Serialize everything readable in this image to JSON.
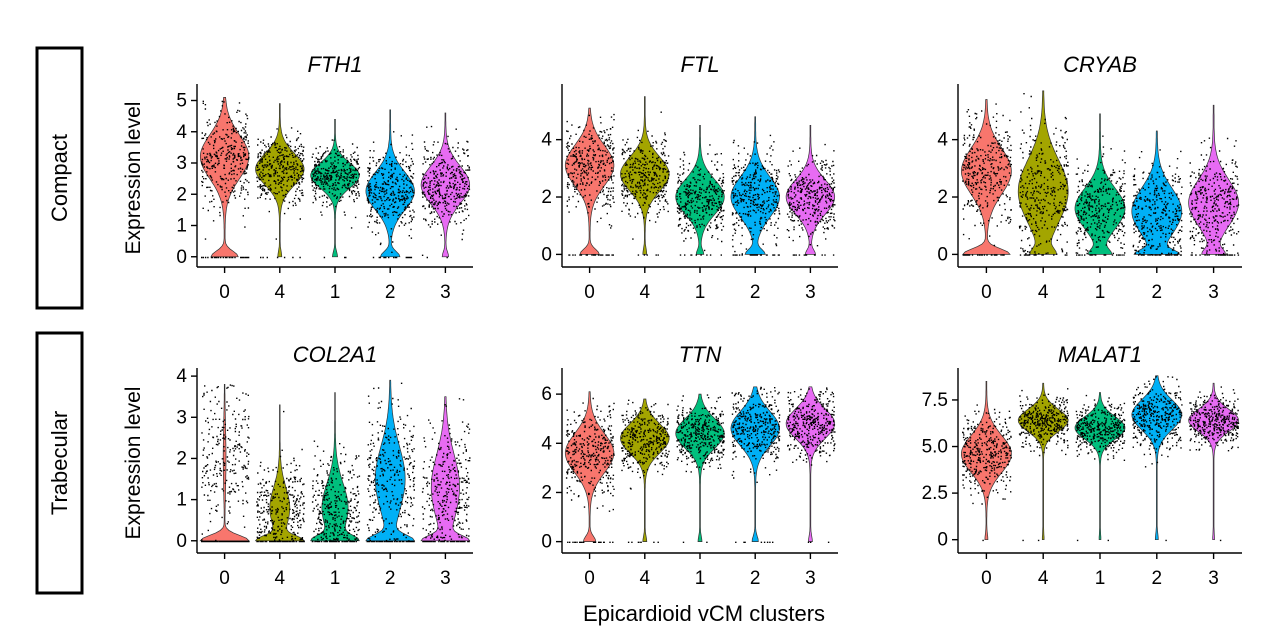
{
  "figure": {
    "row_labels": [
      "Compact",
      "Trabecular"
    ],
    "ylabel": "Expression level",
    "xlabel": "Epicardioid vCM clusters"
  },
  "chart_data": [
    {
      "type": "violin",
      "title": "FTH1",
      "row": "Compact",
      "categories": [
        "0",
        "4",
        "1",
        "2",
        "3"
      ],
      "colors": [
        "#F8766D",
        "#A3A500",
        "#00BF7D",
        "#00B0F6",
        "#E76BF3"
      ],
      "ylim": [
        -0.2,
        5.4
      ],
      "yticks": [
        0,
        1,
        2,
        3,
        4,
        5
      ],
      "ytick_labels": [
        "0",
        "1",
        "2",
        "3",
        "4",
        "5"
      ],
      "series": [
        {
          "name": "0",
          "max": 5.1,
          "zero_fraction": 0.2,
          "mode": 3.2,
          "spread": 0.7
        },
        {
          "name": "4",
          "max": 4.9,
          "zero_fraction": 0.03,
          "mode": 2.8,
          "spread": 0.5
        },
        {
          "name": "1",
          "max": 4.4,
          "zero_fraction": 0.04,
          "mode": 2.6,
          "spread": 0.4
        },
        {
          "name": "2",
          "max": 4.7,
          "zero_fraction": 0.15,
          "mode": 2.1,
          "spread": 0.6
        },
        {
          "name": "3",
          "max": 4.6,
          "zero_fraction": 0.05,
          "mode": 2.3,
          "spread": 0.6
        }
      ]
    },
    {
      "type": "violin",
      "title": "FTL",
      "row": "Compact",
      "categories": [
        "0",
        "4",
        "1",
        "2",
        "3"
      ],
      "colors": [
        "#F8766D",
        "#A3A500",
        "#00BF7D",
        "#00B0F6",
        "#E76BF3"
      ],
      "ylim": [
        -0.3,
        5.8
      ],
      "yticks": [
        0,
        2,
        4
      ],
      "ytick_labels": [
        "0",
        "2",
        "4"
      ],
      "series": [
        {
          "name": "0",
          "max": 5.1,
          "zero_fraction": 0.15,
          "mode": 3.1,
          "spread": 0.7
        },
        {
          "name": "4",
          "max": 5.5,
          "zero_fraction": 0.03,
          "mode": 2.8,
          "spread": 0.6
        },
        {
          "name": "1",
          "max": 4.5,
          "zero_fraction": 0.06,
          "mode": 2.0,
          "spread": 0.6
        },
        {
          "name": "2",
          "max": 4.8,
          "zero_fraction": 0.15,
          "mode": 2.0,
          "spread": 0.7
        },
        {
          "name": "3",
          "max": 4.5,
          "zero_fraction": 0.08,
          "mode": 2.0,
          "spread": 0.6
        }
      ]
    },
    {
      "type": "violin",
      "title": "CRYAB",
      "row": "Compact",
      "categories": [
        "0",
        "4",
        "1",
        "2",
        "3"
      ],
      "colors": [
        "#F8766D",
        "#A3A500",
        "#00BF7D",
        "#00B0F6",
        "#E76BF3"
      ],
      "ylim": [
        -0.3,
        5.8
      ],
      "yticks": [
        0,
        2,
        4
      ],
      "ytick_labels": [
        "0",
        "2",
        "4"
      ],
      "series": [
        {
          "name": "0",
          "max": 5.4,
          "zero_fraction": 0.3,
          "mode": 2.9,
          "spread": 0.8
        },
        {
          "name": "4",
          "max": 5.7,
          "zero_fraction": 0.15,
          "mode": 2.2,
          "spread": 1.1
        },
        {
          "name": "1",
          "max": 4.9,
          "zero_fraction": 0.15,
          "mode": 1.6,
          "spread": 0.7
        },
        {
          "name": "2",
          "max": 4.3,
          "zero_fraction": 0.25,
          "mode": 1.5,
          "spread": 0.8
        },
        {
          "name": "3",
          "max": 5.2,
          "zero_fraction": 0.15,
          "mode": 1.8,
          "spread": 0.8
        }
      ]
    },
    {
      "type": "violin",
      "title": "COL2A1",
      "row": "Trabecular",
      "categories": [
        "0",
        "4",
        "1",
        "2",
        "3"
      ],
      "colors": [
        "#F8766D",
        "#A3A500",
        "#00BF7D",
        "#00B0F6",
        "#E76BF3"
      ],
      "ylim": [
        -0.2,
        4.1
      ],
      "yticks": [
        0,
        1,
        2,
        3,
        4
      ],
      "ytick_labels": [
        "0",
        "1",
        "2",
        "3",
        "4"
      ],
      "series": [
        {
          "name": "0",
          "max": 3.8,
          "zero_fraction": 0.9,
          "mode": 2.0,
          "spread": 0.8
        },
        {
          "name": "4",
          "max": 3.3,
          "zero_fraction": 0.5,
          "mode": 0.8,
          "spread": 0.5
        },
        {
          "name": "1",
          "max": 3.6,
          "zero_fraction": 0.4,
          "mode": 0.8,
          "spread": 0.6
        },
        {
          "name": "2",
          "max": 3.9,
          "zero_fraction": 0.4,
          "mode": 1.5,
          "spread": 0.8
        },
        {
          "name": "3",
          "max": 3.5,
          "zero_fraction": 0.4,
          "mode": 1.3,
          "spread": 0.8
        }
      ]
    },
    {
      "type": "violin",
      "title": "TTN",
      "row": "Trabecular",
      "categories": [
        "0",
        "4",
        "1",
        "2",
        "3"
      ],
      "colors": [
        "#F8766D",
        "#A3A500",
        "#00BF7D",
        "#00B0F6",
        "#E76BF3"
      ],
      "ylim": [
        -0.3,
        6.9
      ],
      "yticks": [
        0,
        2,
        4,
        6
      ],
      "ytick_labels": [
        "0",
        "2",
        "4",
        "6"
      ],
      "series": [
        {
          "name": "0",
          "max": 6.1,
          "zero_fraction": 0.1,
          "mode": 3.6,
          "spread": 0.8
        },
        {
          "name": "4",
          "max": 5.8,
          "zero_fraction": 0.03,
          "mode": 4.2,
          "spread": 0.6
        },
        {
          "name": "1",
          "max": 6.0,
          "zero_fraction": 0.03,
          "mode": 4.4,
          "spread": 0.6
        },
        {
          "name": "2",
          "max": 6.3,
          "zero_fraction": 0.05,
          "mode": 4.6,
          "spread": 0.7
        },
        {
          "name": "3",
          "max": 6.3,
          "zero_fraction": 0.03,
          "mode": 4.8,
          "spread": 0.6
        }
      ]
    },
    {
      "type": "violin",
      "title": "MALAT1",
      "row": "Trabecular",
      "categories": [
        "0",
        "4",
        "1",
        "2",
        "3"
      ],
      "colors": [
        "#F8766D",
        "#A3A500",
        "#00BF7D",
        "#00B0F6",
        "#E76BF3"
      ],
      "ylim": [
        -0.5,
        9.0
      ],
      "yticks": [
        0,
        2.5,
        5.0,
        7.5
      ],
      "ytick_labels": [
        "0",
        "2.5",
        "5.0",
        "7.5"
      ],
      "series": [
        {
          "name": "0",
          "max": 8.5,
          "zero_fraction": 0.02,
          "mode": 4.6,
          "spread": 1.0
        },
        {
          "name": "4",
          "max": 8.4,
          "zero_fraction": 0.01,
          "mode": 6.4,
          "spread": 0.6
        },
        {
          "name": "1",
          "max": 7.9,
          "zero_fraction": 0.01,
          "mode": 6.0,
          "spread": 0.6
        },
        {
          "name": "2",
          "max": 8.8,
          "zero_fraction": 0.02,
          "mode": 6.7,
          "spread": 0.8
        },
        {
          "name": "3",
          "max": 8.4,
          "zero_fraction": 0.01,
          "mode": 6.4,
          "spread": 0.6
        }
      ]
    }
  ]
}
